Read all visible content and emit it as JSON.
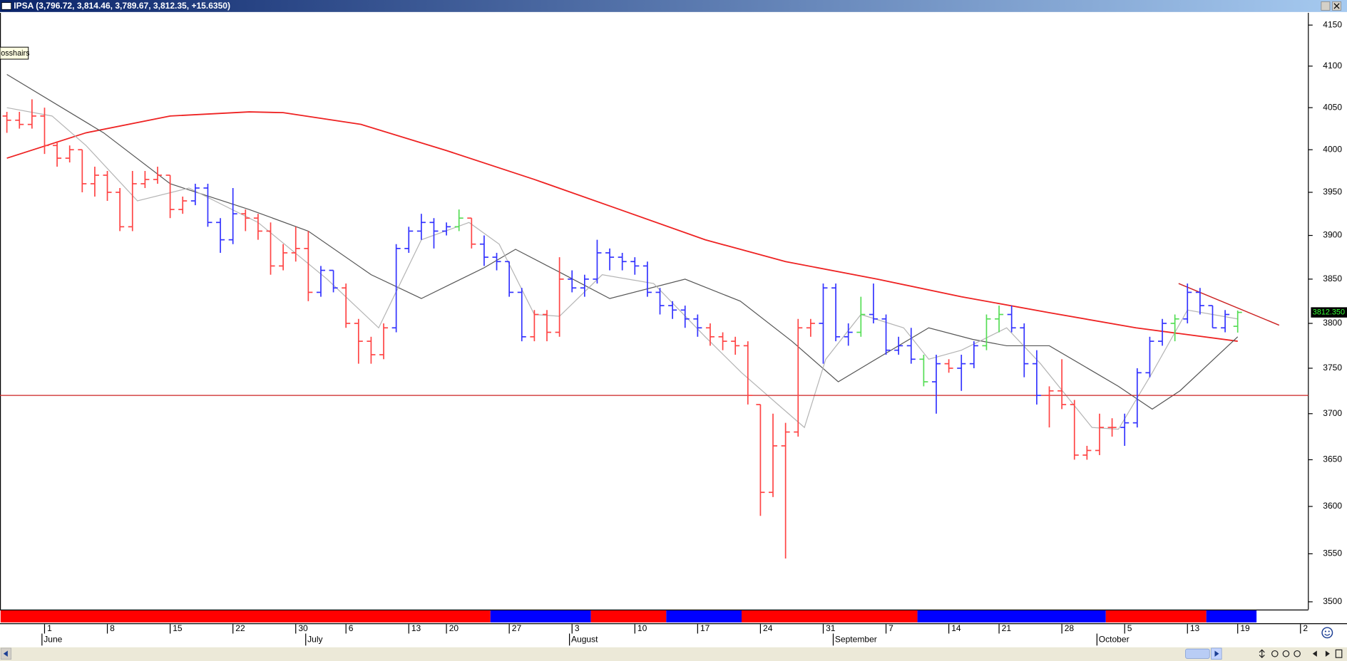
{
  "chart_data": {
    "type": "ohlc",
    "title": "IPSA (3,796.72, 3,814.46, 3,789.67, 3,812.35, +15.6350)",
    "crosshair_tooltip": "osshairs",
    "categories": [
      null,
      null,
      null,
      "1",
      null,
      null,
      null,
      null,
      "8",
      null,
      null,
      null,
      null,
      "15",
      null,
      null,
      null,
      null,
      "22",
      null,
      null,
      null,
      null,
      "30",
      null,
      null,
      null,
      "6",
      null,
      null,
      null,
      null,
      "13",
      null,
      null,
      "20",
      null,
      null,
      null,
      null,
      "27",
      null,
      null,
      null,
      null,
      "3",
      null,
      null,
      null,
      null,
      "10",
      null,
      null,
      null,
      null,
      "17",
      null,
      null,
      null,
      null,
      "24",
      null,
      null,
      null,
      null,
      "31",
      null,
      null,
      null,
      null,
      "7",
      null,
      null,
      null,
      null,
      "14",
      null,
      null,
      null,
      "21",
      null,
      null,
      null,
      null,
      "28",
      null,
      null,
      null,
      null,
      "5",
      null,
      null,
      null,
      null,
      "13",
      null,
      null,
      null,
      "19",
      null,
      null,
      null,
      null,
      "2"
    ],
    "months": [
      null,
      null,
      null,
      "June",
      null,
      null,
      null,
      null,
      null,
      null,
      null,
      null,
      null,
      null,
      null,
      null,
      null,
      null,
      null,
      null,
      null,
      null,
      null,
      null,
      "July",
      null,
      null,
      null,
      null,
      null,
      null,
      null,
      null,
      null,
      null,
      null,
      null,
      null,
      null,
      null,
      null,
      null,
      null,
      null,
      null,
      "August",
      null,
      null,
      null,
      null,
      null,
      null,
      null,
      null,
      null,
      null,
      null,
      null,
      null,
      null,
      null,
      null,
      null,
      null,
      null,
      null,
      "September",
      null,
      null,
      null,
      null,
      null,
      null,
      null,
      null,
      null,
      null,
      null,
      null,
      null,
      null,
      null,
      null,
      null,
      null,
      null,
      null,
      "October",
      null,
      null,
      null,
      null,
      null,
      null,
      null,
      null,
      null,
      null,
      null,
      null,
      null,
      null,
      null,
      null
    ],
    "open": [
      4040,
      4035,
      4030,
      4040,
      4005,
      3990,
      4000,
      3960,
      3970,
      3950,
      3910,
      3960,
      3965,
      3970,
      3930,
      3940,
      3955,
      3915,
      3895,
      3925,
      3920,
      3905,
      3865,
      3880,
      3885,
      3835,
      3860,
      3840,
      3800,
      3780,
      3765,
      3795,
      3885,
      3905,
      3915,
      3905,
      3910,
      3920,
      3890,
      3875,
      3870,
      3835,
      3785,
      3810,
      3790,
      3850,
      3840,
      3850,
      3880,
      3875,
      3870,
      3865,
      3835,
      3820,
      3815,
      3805,
      3795,
      3785,
      3780,
      3775,
      3710,
      3615,
      3665,
      3680,
      3795,
      3800,
      3840,
      3785,
      3790,
      3810,
      3805,
      3770,
      3775,
      3760,
      3735,
      3755,
      3750,
      3755,
      3775,
      3805,
      3810,
      3795,
      3755,
      3720,
      3725,
      3710,
      3655,
      3660,
      3685,
      3685,
      3690,
      3745,
      3780,
      3800,
      3805,
      3835,
      3820,
      3795,
      3796.72,
      null,
      null,
      null,
      null,
      null
    ],
    "high": [
      4045,
      4045,
      4060,
      4050,
      4010,
      4005,
      4000,
      3980,
      3975,
      3955,
      3975,
      3975,
      3980,
      3970,
      3945,
      3960,
      3960,
      3920,
      3955,
      3930,
      3925,
      3915,
      3890,
      3910,
      3905,
      3865,
      3860,
      3845,
      3805,
      3785,
      3800,
      3890,
      3910,
      3925,
      3920,
      3915,
      3930,
      3920,
      3900,
      3880,
      3870,
      3840,
      3815,
      3815,
      3875,
      3860,
      3855,
      3895,
      3885,
      3880,
      3875,
      3870,
      3840,
      3825,
      3820,
      3810,
      3800,
      3790,
      3785,
      3780,
      3710,
      3700,
      3690,
      3805,
      3805,
      3845,
      3845,
      3800,
      3830,
      3845,
      3810,
      3785,
      3795,
      3765,
      3765,
      3760,
      3765,
      3780,
      3810,
      3820,
      3820,
      3800,
      3770,
      3730,
      3760,
      3715,
      3665,
      3700,
      3695,
      3700,
      3750,
      3785,
      3805,
      3810,
      3845,
      3840,
      3820,
      3815,
      3814.46,
      null,
      null,
      null,
      null,
      null
    ],
    "low": [
      4020,
      4025,
      4025,
      3995,
      3980,
      3985,
      3950,
      3945,
      3940,
      3905,
      3905,
      3955,
      3960,
      3920,
      3925,
      3935,
      3910,
      3880,
      3890,
      3905,
      3895,
      3855,
      3860,
      3870,
      3825,
      3830,
      3835,
      3795,
      3755,
      3755,
      3760,
      3790,
      3880,
      3895,
      3885,
      3900,
      3905,
      3885,
      3865,
      3860,
      3830,
      3780,
      3780,
      3780,
      3785,
      3835,
      3830,
      3845,
      3860,
      3860,
      3855,
      3830,
      3810,
      3805,
      3795,
      3785,
      3775,
      3770,
      3765,
      3710,
      3590,
      3610,
      3545,
      3675,
      3785,
      3755,
      3780,
      3775,
      3785,
      3800,
      3765,
      3765,
      3755,
      3730,
      3700,
      3745,
      3725,
      3750,
      3770,
      3790,
      3790,
      3740,
      3710,
      3685,
      3705,
      3650,
      3650,
      3655,
      3675,
      3665,
      3685,
      3740,
      3775,
      3780,
      3800,
      3810,
      3795,
      3790,
      3789.67,
      null,
      null,
      null,
      null,
      null
    ],
    "close": [
      4035,
      4030,
      4040,
      4005,
      3990,
      4000,
      3960,
      3970,
      3950,
      3910,
      3960,
      3965,
      3970,
      3930,
      3940,
      3955,
      3915,
      3895,
      3925,
      3920,
      3905,
      3865,
      3880,
      3885,
      3835,
      3860,
      3840,
      3800,
      3780,
      3765,
      3795,
      3885,
      3905,
      3915,
      3905,
      3910,
      3920,
      3890,
      3875,
      3870,
      3835,
      3785,
      3810,
      3790,
      3850,
      3840,
      3850,
      3880,
      3875,
      3870,
      3865,
      3835,
      3820,
      3815,
      3805,
      3795,
      3785,
      3780,
      3775,
      3720,
      3615,
      3665,
      3680,
      3795,
      3800,
      3840,
      3785,
      3790,
      3810,
      3805,
      3770,
      3775,
      3760,
      3735,
      3755,
      3750,
      3755,
      3775,
      3805,
      3810,
      3795,
      3755,
      3720,
      3725,
      3710,
      3655,
      3660,
      3685,
      3685,
      3690,
      3745,
      3780,
      3800,
      3805,
      3835,
      3820,
      3795,
      3810,
      3812.35,
      null,
      null,
      null,
      null,
      null
    ],
    "bar_colors": [
      "#ff4444",
      "#ff4444",
      "#ff4444",
      "#ff4444",
      "#ff4444",
      "#ff4444",
      "#ff4444",
      "#ff4444",
      "#ff4444",
      "#ff4444",
      "#ff4444",
      "#ff4444",
      "#ff4444",
      "#ff4444",
      "#ff4444",
      "#3333ff",
      "#3333ff",
      "#3333ff",
      "#3333ff",
      "#ff4444",
      "#ff4444",
      "#ff4444",
      "#ff4444",
      "#ff4444",
      "#ff4444",
      "#3333ff",
      "#3333ff",
      "#ff4444",
      "#ff4444",
      "#ff4444",
      "#ff4444",
      "#3333ff",
      "#3333ff",
      "#3333ff",
      "#3333ff",
      "#3333ff",
      "#55dd55",
      "#ff4444",
      "#3333ff",
      "#3333ff",
      "#3333ff",
      "#3333ff",
      "#ff4444",
      "#ff4444",
      "#ff4444",
      "#3333ff",
      "#3333ff",
      "#3333ff",
      "#3333ff",
      "#3333ff",
      "#3333ff",
      "#3333ff",
      "#3333ff",
      "#3333ff",
      "#3333ff",
      "#3333ff",
      "#ff4444",
      "#ff4444",
      "#ff4444",
      "#ff4444",
      "#ff4444",
      "#ff4444",
      "#ff4444",
      "#ff4444",
      "#ff4444",
      "#3333ff",
      "#3333ff",
      "#3333ff",
      "#55dd55",
      "#3333ff",
      "#3333ff",
      "#3333ff",
      "#3333ff",
      "#55dd55",
      "#3333ff",
      "#ff4444",
      "#3333ff",
      "#3333ff",
      "#55dd55",
      "#55dd55",
      "#3333ff",
      "#3333ff",
      "#3333ff",
      "#ff4444",
      "#ff4444",
      "#ff4444",
      "#ff4444",
      "#ff4444",
      "#ff4444",
      "#3333ff",
      "#3333ff",
      "#3333ff",
      "#3333ff",
      "#55dd55",
      "#3333ff",
      "#3333ff",
      "#3333ff",
      "#3333ff",
      "#55dd55",
      null,
      null,
      null,
      null,
      null
    ],
    "lines": [
      {
        "color": "#ee2222",
        "width": 1.5,
        "x": [
          0,
          6.3,
          13,
          19.3,
          22,
          28.2,
          35,
          42,
          48.8,
          55.6,
          62,
          69.3,
          76,
          83,
          89.9,
          98
        ],
        "values": [
          3990,
          4020,
          4040,
          4045,
          4044,
          4030,
          3999,
          3965,
          3930,
          3895,
          3870,
          3850,
          3830,
          3812,
          3795,
          3780
        ]
      },
      {
        "color": "#555555",
        "width": 1,
        "x": [
          0,
          7.7,
          13,
          19.3,
          24,
          29,
          33,
          38,
          40.5,
          44,
          48,
          54,
          58.4,
          62.5,
          66.2,
          68.6,
          73.4,
          76.9,
          79.6,
          83,
          88.5,
          91.2,
          93.4,
          98
        ],
        "values": [
          4090,
          4020,
          3960,
          3930,
          3905,
          3855,
          3828,
          3863,
          3884,
          3858,
          3828,
          3850,
          3825,
          3780,
          3735,
          3755,
          3795,
          3782,
          3775,
          3775,
          3730,
          3705,
          3725,
          3785
        ]
      },
      {
        "color": "#b4b4b4",
        "width": 1,
        "x": [
          0,
          3.6,
          6.3,
          10.4,
          14.5,
          20,
          25.5,
          29.6,
          33,
          36.8,
          39.2,
          42,
          44,
          47.4,
          51.5,
          55.6,
          58.5,
          61.4,
          63.5,
          65.2,
          68,
          71.4,
          73.4,
          76,
          79.6,
          82.3,
          86.4,
          88.5,
          91.2,
          94,
          98
        ],
        "values": [
          4050,
          4040,
          4005,
          3940,
          3955,
          3915,
          3850,
          3795,
          3895,
          3915,
          3890,
          3810,
          3808,
          3855,
          3845,
          3785,
          3745,
          3710,
          3685,
          3760,
          3810,
          3795,
          3760,
          3770,
          3795,
          3755,
          3685,
          3683,
          3745,
          3815,
          3805
        ]
      },
      {
        "color": "#cc2222",
        "width": 1,
        "x": [
          -1,
          104
        ],
        "values": [
          3720,
          3720
        ]
      },
      {
        "color": "#cc2222",
        "width": 1.2,
        "x": [
          93.3,
          101.3
        ],
        "values": [
          3845,
          3798
        ]
      }
    ],
    "band": [
      {
        "color": "#ff0000",
        "from": -0.5,
        "to": 38.5
      },
      {
        "color": "#0000ff",
        "from": 38.5,
        "to": 46.5
      },
      {
        "color": "#ff0000",
        "from": 46.5,
        "to": 52.5
      },
      {
        "color": "#0000ff",
        "from": 52.5,
        "to": 58.5
      },
      {
        "color": "#ff0000",
        "from": 58.5,
        "to": 72.5
      },
      {
        "color": "#0000ff",
        "from": 72.5,
        "to": 87.5
      },
      {
        "color": "#ff0000",
        "from": 87.5,
        "to": 95.5
      },
      {
        "color": "#0000ff",
        "from": 95.5,
        "to": 99.5
      }
    ],
    "last_price": {
      "value": 3812.35,
      "label": "3812.350"
    },
    "ylim": [
      3492,
      4165
    ],
    "yticks": [
      3500,
      3550,
      3600,
      3650,
      3700,
      3750,
      3800,
      3850,
      3900,
      3950,
      4000,
      4050,
      4100,
      4150
    ],
    "log_scale": true,
    "grid": false
  }
}
